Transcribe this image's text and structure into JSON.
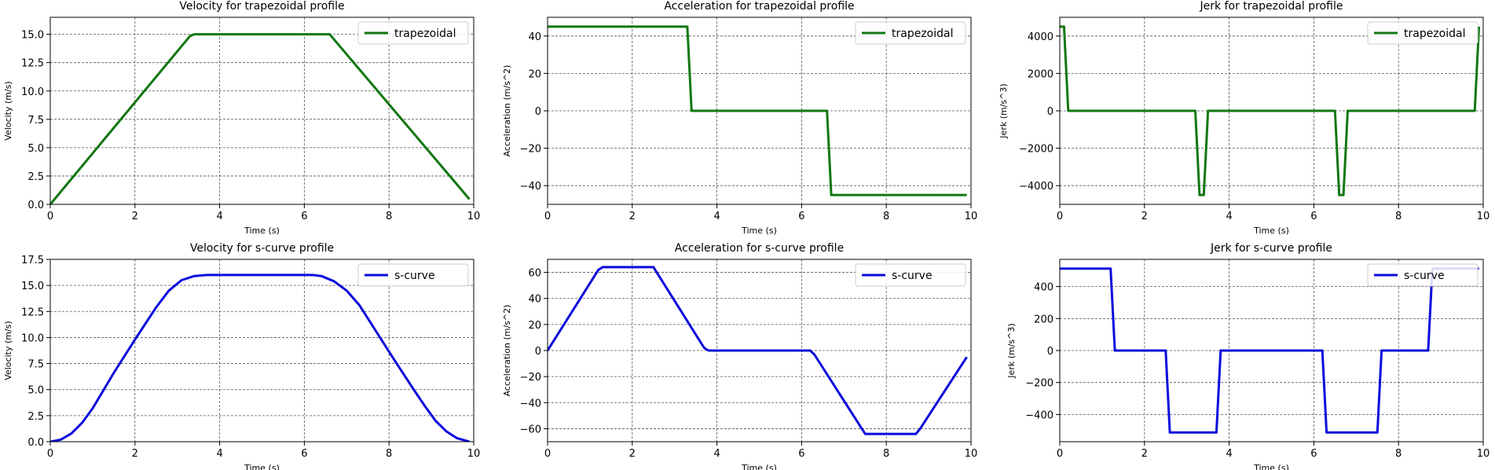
{
  "chart_data": [
    {
      "type": "line",
      "title": "Velocity for trapezoidal profile",
      "xlabel": "Time (s)",
      "ylabel": "Velocity (m/s)",
      "xlim": [
        0,
        10
      ],
      "ylim": [
        0,
        16.5
      ],
      "xticks": [
        "0",
        "2",
        "4",
        "6",
        "8",
        "10"
      ],
      "yticks": [
        "0.0",
        "2.5",
        "5.0",
        "7.5",
        "10.0",
        "12.5",
        "15.0"
      ],
      "grid": true,
      "legend_position": "upper right",
      "series": [
        {
          "name": "trapezoidal",
          "color": "#117711",
          "x": [
            0.0,
            0.1,
            3.3,
            3.4,
            6.6,
            6.7,
            9.9
          ],
          "y": [
            0.0,
            0.45,
            14.85,
            15.0,
            15.0,
            14.55,
            0.45
          ]
        }
      ]
    },
    {
      "type": "line",
      "title": "Acceleration for trapezoidal profile",
      "xlabel": "Time (s)",
      "ylabel": "Acceleration (m/s^2)",
      "xlim": [
        0,
        10
      ],
      "ylim": [
        -50,
        50
      ],
      "xticks": [
        "0",
        "2",
        "4",
        "6",
        "8",
        "10"
      ],
      "yticks": [
        "−40",
        "−20",
        "0",
        "20",
        "40"
      ],
      "grid": true,
      "legend_position": "upper right",
      "series": [
        {
          "name": "trapezoidal",
          "color": "#117711",
          "x": [
            0.0,
            3.3,
            3.4,
            6.6,
            6.7,
            9.9
          ],
          "y": [
            45,
            45,
            0,
            0,
            -45,
            -45
          ]
        }
      ]
    },
    {
      "type": "line",
      "title": "Jerk for trapezoidal profile",
      "xlabel": "Time (s)",
      "ylabel": "Jerk (m/s^3)",
      "xlim": [
        0,
        10
      ],
      "ylim": [
        -5000,
        5000
      ],
      "xticks": [
        "0",
        "2",
        "4",
        "6",
        "8",
        "10"
      ],
      "yticks": [
        "−4000",
        "−2000",
        "0",
        "2000",
        "4000"
      ],
      "grid": true,
      "legend_position": "upper right",
      "series": [
        {
          "name": "trapezoidal",
          "color": "#117711",
          "x": [
            0.0,
            0.1,
            0.2,
            3.2,
            3.3,
            3.4,
            3.5,
            6.5,
            6.6,
            6.7,
            6.8,
            9.8,
            9.9
          ],
          "y": [
            4500,
            4500,
            0,
            0,
            -4500,
            -4500,
            0,
            0,
            -4500,
            -4500,
            0,
            0,
            4500
          ]
        }
      ]
    },
    {
      "type": "line",
      "title": "Velocity for s-curve profile",
      "xlabel": "Time (s)",
      "ylabel": "Velocity (m/s)",
      "xlim": [
        0,
        10
      ],
      "ylim": [
        0,
        17.5
      ],
      "xticks": [
        "0",
        "2",
        "4",
        "6",
        "8",
        "10"
      ],
      "yticks": [
        "0.0",
        "2.5",
        "5.0",
        "7.5",
        "10.0",
        "12.5",
        "15.0",
        "17.5"
      ],
      "grid": true,
      "legend_position": "upper right",
      "series": [
        {
          "name": "s-curve",
          "color": "#0b0bdd",
          "x": [
            0.0,
            0.25,
            0.5,
            0.75,
            1.0,
            1.25,
            1.5,
            2.0,
            2.5,
            2.8,
            3.1,
            3.4,
            3.7,
            3.9,
            6.2,
            6.4,
            6.7,
            7.0,
            7.3,
            7.6,
            8.1,
            8.6,
            8.85,
            9.1,
            9.35,
            9.6,
            9.9
          ],
          "y": [
            0.0,
            0.2,
            0.8,
            1.8,
            3.2,
            4.9,
            6.6,
            9.8,
            12.9,
            14.5,
            15.5,
            15.9,
            16.0,
            16.0,
            16.0,
            15.9,
            15.4,
            14.5,
            13.1,
            11.2,
            8.0,
            4.9,
            3.4,
            2.0,
            1.0,
            0.35,
            0.0
          ]
        }
      ]
    },
    {
      "type": "line",
      "title": "Acceleration for s-curve profile",
      "xlabel": "Time (s)",
      "ylabel": "Acceleration (m/s^2)",
      "xlim": [
        0,
        10
      ],
      "ylim": [
        -70,
        70
      ],
      "xticks": [
        "0",
        "2",
        "4",
        "6",
        "8",
        "10"
      ],
      "yticks": [
        "−60",
        "−40",
        "−20",
        "0",
        "20",
        "40",
        "60"
      ],
      "grid": true,
      "legend_position": "upper right",
      "series": [
        {
          "name": "s-curve",
          "color": "#0b0bdd",
          "x": [
            0.0,
            1.2,
            1.3,
            2.5,
            3.7,
            3.8,
            6.2,
            6.3,
            7.5,
            8.7,
            8.8,
            9.9
          ],
          "y": [
            0,
            62,
            64,
            64,
            2,
            0,
            0,
            -3,
            -64,
            -64,
            -60,
            -5
          ]
        }
      ]
    },
    {
      "type": "line",
      "title": "Jerk for s-curve profile",
      "xlabel": "Time (s)",
      "ylabel": "Jerk (m/s^3)",
      "xlim": [
        0,
        10
      ],
      "ylim": [
        -570,
        570
      ],
      "xticks": [
        "0",
        "2",
        "4",
        "6",
        "8",
        "10"
      ],
      "yticks": [
        "−400",
        "−200",
        "0",
        "200",
        "400"
      ],
      "grid": true,
      "legend_position": "upper right",
      "series": [
        {
          "name": "s-curve",
          "color": "#0b0bdd",
          "x": [
            0.0,
            1.2,
            1.3,
            2.5,
            2.6,
            3.7,
            3.8,
            6.2,
            6.3,
            7.5,
            7.6,
            8.7,
            8.8,
            9.9
          ],
          "y": [
            512,
            512,
            0,
            0,
            -512,
            -512,
            0,
            0,
            -512,
            -512,
            0,
            0,
            512,
            512
          ]
        }
      ]
    }
  ]
}
